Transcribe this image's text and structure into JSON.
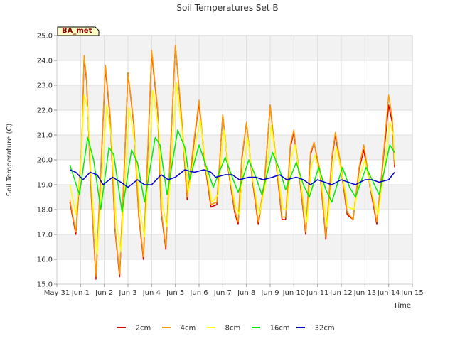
{
  "chart_data": {
    "type": "line",
    "title": "Soil Temperatures Set B",
    "xlabel": "Time",
    "ylabel": "Soil Temperature (C)",
    "badge": "BA_met",
    "ylim": [
      15.0,
      25.0
    ],
    "xlim": [
      0,
      15
    ],
    "y_ticks": [
      "15.0",
      "16.0",
      "17.0",
      "18.0",
      "19.0",
      "20.0",
      "21.0",
      "22.0",
      "23.0",
      "24.0",
      "25.0"
    ],
    "x_ticks": [
      "May 31",
      "Jun 1",
      "Jun 2",
      "Jun 3",
      "Jun 4",
      "Jun 5",
      "Jun 6",
      "Jun 7",
      "Jun 8",
      "Jun 9",
      "Jun 10",
      "Jun 11",
      "Jun 12",
      "Jun 13",
      "Jun 14",
      "Jun 15"
    ],
    "grid": true,
    "legend_position": "bottom",
    "series": [
      {
        "name": "-2cm",
        "color": "#dd0000",
        "points": [
          [
            0.55,
            18.3
          ],
          [
            0.8,
            17.0
          ],
          [
            1.05,
            20.5
          ],
          [
            1.15,
            24.1
          ],
          [
            1.25,
            23.2
          ],
          [
            1.45,
            18.6
          ],
          [
            1.65,
            15.2
          ],
          [
            1.85,
            19.5
          ],
          [
            2.05,
            23.7
          ],
          [
            2.25,
            21.7
          ],
          [
            2.45,
            17.2
          ],
          [
            2.65,
            15.3
          ],
          [
            2.85,
            19.8
          ],
          [
            3.0,
            23.5
          ],
          [
            3.25,
            21.4
          ],
          [
            3.45,
            17.8
          ],
          [
            3.65,
            16.0
          ],
          [
            3.85,
            20.6
          ],
          [
            4.0,
            24.3
          ],
          [
            4.25,
            22.0
          ],
          [
            4.4,
            17.9
          ],
          [
            4.6,
            16.4
          ],
          [
            4.8,
            20.5
          ],
          [
            5.0,
            24.6
          ],
          [
            5.25,
            21.8
          ],
          [
            5.5,
            18.4
          ],
          [
            5.8,
            20.8
          ],
          [
            6.0,
            22.3
          ],
          [
            6.25,
            19.8
          ],
          [
            6.5,
            18.1
          ],
          [
            6.75,
            18.2
          ],
          [
            7.0,
            21.8
          ],
          [
            7.25,
            19.5
          ],
          [
            7.5,
            17.9
          ],
          [
            7.65,
            17.4
          ],
          [
            7.8,
            20.0
          ],
          [
            8.0,
            21.5
          ],
          [
            8.25,
            19.2
          ],
          [
            8.5,
            17.4
          ],
          [
            8.75,
            19.0
          ],
          [
            9.0,
            22.2
          ],
          [
            9.25,
            19.9
          ],
          [
            9.5,
            17.6
          ],
          [
            9.65,
            17.6
          ],
          [
            9.85,
            20.5
          ],
          [
            10.0,
            21.1
          ],
          [
            10.25,
            19.2
          ],
          [
            10.5,
            17.0
          ],
          [
            10.7,
            20.2
          ],
          [
            10.85,
            20.7
          ],
          [
            11.1,
            19.5
          ],
          [
            11.35,
            16.8
          ],
          [
            11.6,
            20.0
          ],
          [
            11.75,
            21.0
          ],
          [
            12.0,
            19.6
          ],
          [
            12.25,
            17.8
          ],
          [
            12.5,
            17.6
          ],
          [
            12.75,
            19.6
          ],
          [
            12.95,
            20.4
          ],
          [
            13.2,
            19.0
          ],
          [
            13.5,
            17.4
          ],
          [
            13.75,
            19.8
          ],
          [
            14.0,
            22.2
          ],
          [
            14.15,
            21.5
          ],
          [
            14.25,
            19.7
          ]
        ]
      },
      {
        "name": "-4cm",
        "color": "#ff9900",
        "points": [
          [
            0.55,
            18.4
          ],
          [
            0.8,
            17.1
          ],
          [
            1.05,
            20.6
          ],
          [
            1.15,
            24.2
          ],
          [
            1.25,
            23.3
          ],
          [
            1.45,
            18.7
          ],
          [
            1.65,
            15.3
          ],
          [
            1.85,
            19.6
          ],
          [
            2.05,
            23.8
          ],
          [
            2.25,
            21.8
          ],
          [
            2.45,
            17.3
          ],
          [
            2.65,
            15.4
          ],
          [
            2.85,
            19.9
          ],
          [
            3.0,
            23.5
          ],
          [
            3.25,
            21.5
          ],
          [
            3.45,
            17.9
          ],
          [
            3.65,
            16.1
          ],
          [
            3.85,
            20.7
          ],
          [
            4.0,
            24.4
          ],
          [
            4.25,
            22.1
          ],
          [
            4.4,
            18.0
          ],
          [
            4.6,
            16.5
          ],
          [
            4.8,
            20.6
          ],
          [
            5.0,
            24.6
          ],
          [
            5.25,
            21.9
          ],
          [
            5.5,
            18.5
          ],
          [
            5.8,
            20.9
          ],
          [
            6.0,
            22.4
          ],
          [
            6.25,
            19.9
          ],
          [
            6.5,
            18.2
          ],
          [
            6.75,
            18.3
          ],
          [
            7.0,
            21.8
          ],
          [
            7.25,
            19.6
          ],
          [
            7.5,
            18.0
          ],
          [
            7.65,
            17.5
          ],
          [
            7.8,
            20.1
          ],
          [
            8.0,
            21.5
          ],
          [
            8.25,
            19.3
          ],
          [
            8.5,
            17.5
          ],
          [
            8.75,
            19.1
          ],
          [
            9.0,
            22.2
          ],
          [
            9.25,
            20.0
          ],
          [
            9.5,
            17.7
          ],
          [
            9.65,
            17.7
          ],
          [
            9.85,
            20.6
          ],
          [
            10.0,
            21.2
          ],
          [
            10.25,
            19.3
          ],
          [
            10.5,
            17.1
          ],
          [
            10.7,
            20.3
          ],
          [
            10.85,
            20.7
          ],
          [
            11.1,
            19.6
          ],
          [
            11.35,
            16.9
          ],
          [
            11.6,
            20.1
          ],
          [
            11.75,
            21.1
          ],
          [
            12.0,
            19.7
          ],
          [
            12.25,
            17.9
          ],
          [
            12.5,
            17.6
          ],
          [
            12.75,
            19.7
          ],
          [
            12.95,
            20.6
          ],
          [
            13.2,
            19.1
          ],
          [
            13.5,
            17.5
          ],
          [
            13.75,
            19.9
          ],
          [
            14.0,
            22.6
          ],
          [
            14.15,
            21.7
          ],
          [
            14.25,
            19.8
          ]
        ]
      },
      {
        "name": "-8cm",
        "color": "#ffff00",
        "points": [
          [
            0.55,
            19.0
          ],
          [
            0.8,
            17.8
          ],
          [
            1.0,
            19.5
          ],
          [
            1.15,
            22.6
          ],
          [
            1.3,
            22.1
          ],
          [
            1.5,
            18.4
          ],
          [
            1.7,
            16.2
          ],
          [
            1.9,
            19.2
          ],
          [
            2.1,
            22.2
          ],
          [
            2.3,
            20.9
          ],
          [
            2.5,
            17.6
          ],
          [
            2.7,
            16.3
          ],
          [
            2.9,
            19.5
          ],
          [
            3.05,
            22.1
          ],
          [
            3.3,
            20.6
          ],
          [
            3.5,
            18.0
          ],
          [
            3.7,
            16.9
          ],
          [
            3.9,
            20.2
          ],
          [
            4.05,
            22.8
          ],
          [
            4.3,
            21.2
          ],
          [
            4.45,
            18.2
          ],
          [
            4.65,
            17.3
          ],
          [
            4.85,
            20.3
          ],
          [
            5.05,
            23.1
          ],
          [
            5.3,
            21.0
          ],
          [
            5.55,
            18.7
          ],
          [
            5.85,
            20.6
          ],
          [
            6.05,
            21.6
          ],
          [
            6.3,
            19.6
          ],
          [
            6.55,
            18.3
          ],
          [
            6.8,
            18.6
          ],
          [
            7.05,
            21.2
          ],
          [
            7.3,
            19.3
          ],
          [
            7.55,
            18.1
          ],
          [
            7.7,
            17.8
          ],
          [
            7.85,
            19.6
          ],
          [
            8.05,
            20.9
          ],
          [
            8.3,
            19.0
          ],
          [
            8.55,
            17.8
          ],
          [
            8.8,
            19.0
          ],
          [
            9.05,
            21.4
          ],
          [
            9.3,
            19.6
          ],
          [
            9.55,
            18.0
          ],
          [
            9.7,
            18.0
          ],
          [
            9.9,
            20.1
          ],
          [
            10.05,
            20.6
          ],
          [
            10.3,
            19.0
          ],
          [
            10.55,
            17.5
          ],
          [
            10.75,
            19.8
          ],
          [
            10.9,
            20.2
          ],
          [
            11.15,
            19.2
          ],
          [
            11.4,
            17.3
          ],
          [
            11.65,
            19.7
          ],
          [
            11.8,
            20.5
          ],
          [
            12.05,
            19.3
          ],
          [
            12.3,
            18.1
          ],
          [
            12.55,
            18.0
          ],
          [
            12.8,
            19.4
          ],
          [
            13.0,
            20.0
          ],
          [
            13.25,
            18.8
          ],
          [
            13.55,
            17.8
          ],
          [
            13.8,
            19.5
          ],
          [
            14.05,
            21.5
          ],
          [
            14.2,
            21.0
          ],
          [
            14.25,
            20.0
          ]
        ]
      },
      {
        "name": "-16cm",
        "color": "#00ee00",
        "points": [
          [
            0.55,
            19.8
          ],
          [
            0.95,
            18.6
          ],
          [
            1.3,
            20.9
          ],
          [
            1.55,
            20.0
          ],
          [
            1.85,
            18.0
          ],
          [
            2.2,
            20.5
          ],
          [
            2.4,
            20.2
          ],
          [
            2.75,
            17.9
          ],
          [
            3.15,
            20.4
          ],
          [
            3.4,
            19.9
          ],
          [
            3.7,
            18.3
          ],
          [
            4.15,
            20.9
          ],
          [
            4.35,
            20.6
          ],
          [
            4.65,
            18.6
          ],
          [
            5.1,
            21.2
          ],
          [
            5.4,
            20.5
          ],
          [
            5.6,
            19.2
          ],
          [
            6.0,
            20.6
          ],
          [
            6.35,
            19.6
          ],
          [
            6.6,
            18.9
          ],
          [
            7.1,
            20.1
          ],
          [
            7.4,
            19.3
          ],
          [
            7.65,
            18.7
          ],
          [
            8.1,
            20.0
          ],
          [
            8.4,
            19.3
          ],
          [
            8.65,
            18.6
          ],
          [
            9.1,
            20.3
          ],
          [
            9.4,
            19.6
          ],
          [
            9.65,
            18.8
          ],
          [
            10.1,
            19.9
          ],
          [
            10.4,
            19.0
          ],
          [
            10.65,
            18.5
          ],
          [
            11.05,
            19.7
          ],
          [
            11.35,
            18.8
          ],
          [
            11.6,
            18.3
          ],
          [
            12.05,
            19.7
          ],
          [
            12.35,
            18.9
          ],
          [
            12.6,
            18.5
          ],
          [
            13.05,
            19.7
          ],
          [
            13.35,
            19.1
          ],
          [
            13.6,
            18.6
          ],
          [
            14.05,
            20.6
          ],
          [
            14.25,
            20.3
          ]
        ]
      },
      {
        "name": "-32cm",
        "color": "#0000cc",
        "points": [
          [
            0.55,
            19.6
          ],
          [
            0.8,
            19.5
          ],
          [
            1.1,
            19.2
          ],
          [
            1.4,
            19.5
          ],
          [
            1.7,
            19.4
          ],
          [
            1.95,
            19.0
          ],
          [
            2.35,
            19.3
          ],
          [
            2.7,
            19.1
          ],
          [
            3.0,
            18.9
          ],
          [
            3.4,
            19.2
          ],
          [
            3.7,
            19.0
          ],
          [
            4.0,
            19.0
          ],
          [
            4.4,
            19.4
          ],
          [
            4.7,
            19.2
          ],
          [
            5.0,
            19.3
          ],
          [
            5.4,
            19.6
          ],
          [
            5.8,
            19.5
          ],
          [
            6.2,
            19.6
          ],
          [
            6.5,
            19.5
          ],
          [
            6.7,
            19.3
          ],
          [
            7.1,
            19.4
          ],
          [
            7.4,
            19.4
          ],
          [
            7.7,
            19.2
          ],
          [
            8.1,
            19.3
          ],
          [
            8.4,
            19.3
          ],
          [
            8.7,
            19.2
          ],
          [
            9.1,
            19.3
          ],
          [
            9.4,
            19.4
          ],
          [
            9.7,
            19.2
          ],
          [
            10.1,
            19.3
          ],
          [
            10.4,
            19.2
          ],
          [
            10.7,
            19.0
          ],
          [
            11.0,
            19.2
          ],
          [
            11.3,
            19.1
          ],
          [
            11.6,
            19.0
          ],
          [
            12.0,
            19.2
          ],
          [
            12.3,
            19.1
          ],
          [
            12.6,
            19.0
          ],
          [
            13.0,
            19.2
          ],
          [
            13.3,
            19.2
          ],
          [
            13.6,
            19.1
          ],
          [
            14.0,
            19.2
          ],
          [
            14.25,
            19.5
          ]
        ]
      }
    ]
  }
}
